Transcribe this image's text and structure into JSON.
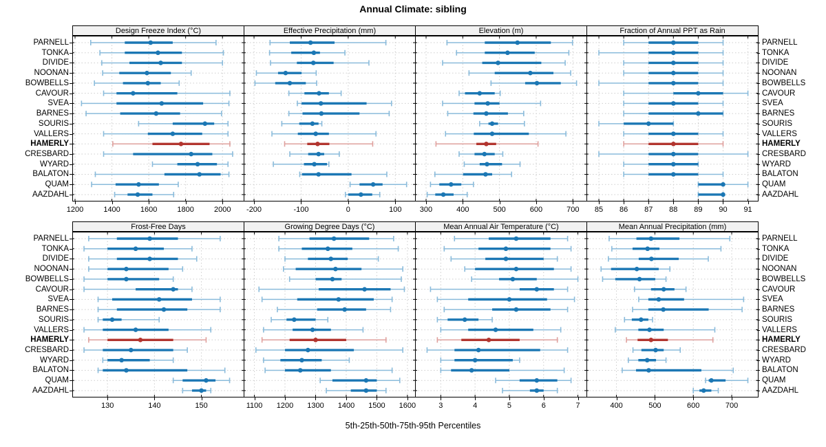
{
  "title": "Annual Climate: sibling",
  "footer": "5th-25th-50th-75th-95th Percentiles",
  "highlight_station": "HAMERLY",
  "colors": {
    "blue": "#1b77b4",
    "blue_light": "#8abbdb",
    "red": "#b2352f",
    "red_light": "#dfa09d",
    "grid": "#cdcdcd",
    "strip_bg": "#f2f2f2",
    "panel_border": "#000000"
  },
  "chart_data": {
    "type": "interval-dotplot",
    "percentiles": [
      5,
      25,
      50,
      75,
      95
    ],
    "legend_note": "5th-25th-50th-75th-95th Percentiles",
    "categories": [
      "PARNELL",
      "TONKA",
      "DIVIDE",
      "NOONAN",
      "BOWBELLS",
      "CAVOUR",
      "SVEA",
      "BARNES",
      "SOURIS",
      "VALLERS",
      "HAMERLY",
      "CRESBARD",
      "WYARD",
      "BALATON",
      "QUAM",
      "AAZDAHL"
    ],
    "highlight": "HAMERLY",
    "panels": [
      {
        "title": "Design Freeze Index (°C)",
        "row": 0,
        "col": 0,
        "xlim": [
          1185,
          2115
        ],
        "ticks": [
          1200,
          1400,
          1600,
          1800,
          2000
        ],
        "values": [
          [
            1285,
            1470,
            1610,
            1730,
            1965
          ],
          [
            1335,
            1470,
            1650,
            1780,
            2005
          ],
          [
            1345,
            1495,
            1665,
            1780,
            2000
          ],
          [
            1350,
            1440,
            1590,
            1720,
            1830
          ],
          [
            1305,
            1460,
            1595,
            1665,
            1765
          ],
          [
            1355,
            1425,
            1515,
            1755,
            2040
          ],
          [
            1235,
            1425,
            1670,
            1895,
            2035
          ],
          [
            1260,
            1445,
            1640,
            1770,
            1995
          ],
          [
            1545,
            1730,
            1905,
            1955,
            2030
          ],
          [
            1355,
            1595,
            1730,
            1890,
            2030
          ],
          [
            1405,
            1620,
            1775,
            1930,
            2040
          ],
          [
            1355,
            1515,
            1830,
            1945,
            2055
          ],
          [
            1620,
            1755,
            1865,
            1970,
            2030
          ],
          [
            1310,
            1685,
            1875,
            1990,
            2035
          ],
          [
            1290,
            1420,
            1545,
            1655,
            1760
          ],
          [
            1415,
            1485,
            1540,
            1620,
            1735
          ]
        ]
      },
      {
        "title": "Effective Precipitation (mm)",
        "row": 0,
        "col": 1,
        "xlim": [
          -222,
          142
        ],
        "ticks": [
          -200,
          -100,
          0,
          100
        ],
        "values": [
          [
            -166,
            -124,
            -80,
            -29,
            80
          ],
          [
            -167,
            -121,
            -73,
            -60,
            -7
          ],
          [
            -165,
            -109,
            -74,
            -31,
            44
          ],
          [
            -195,
            -149,
            -133,
            -99,
            -68
          ],
          [
            -198,
            -155,
            -124,
            -90,
            -67
          ],
          [
            -126,
            -93,
            -62,
            -41,
            -15
          ],
          [
            -108,
            -99,
            -58,
            39,
            92
          ],
          [
            -126,
            -97,
            -57,
            24,
            87
          ],
          [
            -141,
            -104,
            -76,
            -63,
            -56
          ],
          [
            -162,
            -107,
            -69,
            -41,
            59
          ],
          [
            -135,
            -87,
            -65,
            -40,
            52
          ],
          [
            -124,
            -85,
            -63,
            -51,
            -19
          ],
          [
            -159,
            -94,
            -72,
            -45,
            -41
          ],
          [
            -103,
            -98,
            -63,
            7,
            82
          ],
          [
            4,
            24,
            53,
            73,
            124
          ],
          [
            -6,
            0,
            27,
            51,
            67
          ]
        ]
      },
      {
        "title": "Elevation (m)",
        "row": 0,
        "col": 2,
        "xlim": [
          270,
          737
        ],
        "ticks": [
          300,
          400,
          500,
          600,
          700
        ],
        "values": [
          [
            357,
            460,
            549,
            640,
            699
          ],
          [
            383,
            460,
            522,
            596,
            689
          ],
          [
            345,
            453,
            496,
            614,
            679
          ],
          [
            417,
            487,
            584,
            647,
            694
          ],
          [
            477,
            570,
            602,
            667,
            710
          ],
          [
            390,
            406,
            446,
            487,
            502
          ],
          [
            345,
            432,
            468,
            500,
            612
          ],
          [
            359,
            429,
            464,
            523,
            566
          ],
          [
            446,
            470,
            480,
            496,
            568
          ],
          [
            353,
            430,
            480,
            580,
            681
          ],
          [
            327,
            437,
            464,
            491,
            605
          ],
          [
            390,
            432,
            459,
            487,
            509
          ],
          [
            404,
            446,
            466,
            507,
            556
          ],
          [
            324,
            401,
            462,
            480,
            533
          ],
          [
            312,
            336,
            368,
            396,
            429
          ],
          [
            303,
            325,
            347,
            375,
            412
          ]
        ]
      },
      {
        "title": "Fraction of Annual PPT as Rain",
        "row": 0,
        "col": 3,
        "xlim": [
          84.5,
          91.4
        ],
        "ticks": [
          85,
          86,
          87,
          88,
          89,
          90,
          91
        ],
        "values": [
          [
            86,
            87,
            88,
            89,
            90
          ],
          [
            85,
            87,
            88,
            89,
            90
          ],
          [
            86,
            87,
            88,
            89,
            90
          ],
          [
            86,
            87,
            88,
            89,
            90
          ],
          [
            85,
            87,
            88,
            89,
            90
          ],
          [
            86,
            88,
            89,
            90,
            91
          ],
          [
            86,
            87,
            88,
            89,
            90
          ],
          [
            86,
            87,
            89,
            90,
            90
          ],
          [
            85,
            86,
            87,
            88,
            88
          ],
          [
            86,
            87,
            88,
            89,
            90
          ],
          [
            86,
            87,
            88,
            89,
            90
          ],
          [
            85,
            87,
            88,
            89,
            91
          ],
          [
            86,
            87,
            88,
            89,
            89
          ],
          [
            86,
            87,
            88,
            89,
            90
          ],
          [
            89,
            89,
            90,
            90,
            91
          ],
          [
            89,
            89,
            90,
            90,
            90
          ]
        ]
      },
      {
        "title": "Frost-Free Days",
        "row": 1,
        "col": 0,
        "xlim": [
          122.5,
          159
        ],
        "ticks": [
          130,
          140,
          150
        ],
        "values": [
          [
            126,
            132,
            139,
            145,
            154
          ],
          [
            125,
            130,
            136,
            142,
            148
          ],
          [
            126,
            132,
            139,
            145,
            149
          ],
          [
            126,
            130,
            134,
            143,
            146
          ],
          [
            125,
            130,
            134,
            141,
            144
          ],
          [
            125,
            136,
            144,
            145,
            148
          ],
          [
            128,
            131,
            141,
            148,
            154
          ],
          [
            128,
            132,
            142,
            147,
            154
          ],
          [
            128,
            129,
            131,
            133,
            141
          ],
          [
            125,
            129,
            136,
            143,
            152
          ],
          [
            126,
            130,
            137,
            144,
            151
          ],
          [
            125,
            129,
            135,
            144,
            147
          ],
          [
            129,
            130,
            133,
            139,
            144
          ],
          [
            128,
            129,
            134,
            147,
            155
          ],
          [
            144,
            146,
            151,
            153,
            156
          ],
          [
            146,
            148,
            150,
            151,
            152
          ]
        ]
      },
      {
        "title": "Growing Degree Days (°C)",
        "row": 1,
        "col": 1,
        "xlim": [
          1065,
          1625
        ],
        "ticks": [
          1100,
          1200,
          1300,
          1400,
          1500,
          1600
        ],
        "values": [
          [
            1180,
            1280,
            1360,
            1475,
            1555
          ],
          [
            1180,
            1255,
            1340,
            1420,
            1570
          ],
          [
            1200,
            1275,
            1350,
            1405,
            1505
          ],
          [
            1195,
            1235,
            1365,
            1450,
            1585
          ],
          [
            1215,
            1300,
            1355,
            1385,
            1580
          ],
          [
            1115,
            1310,
            1460,
            1545,
            1590
          ],
          [
            1125,
            1240,
            1375,
            1490,
            1550
          ],
          [
            1175,
            1305,
            1395,
            1465,
            1545
          ],
          [
            1155,
            1205,
            1230,
            1300,
            1340
          ],
          [
            1130,
            1225,
            1290,
            1350,
            1455
          ],
          [
            1125,
            1215,
            1300,
            1400,
            1530
          ],
          [
            1105,
            1200,
            1275,
            1425,
            1585
          ],
          [
            1130,
            1185,
            1255,
            1320,
            1410
          ],
          [
            1135,
            1200,
            1250,
            1350,
            1550
          ],
          [
            1315,
            1355,
            1465,
            1500,
            1575
          ],
          [
            1335,
            1415,
            1465,
            1500,
            1530
          ]
        ]
      },
      {
        "title": "Mean Annual Air Temperature (°C)",
        "row": 1,
        "col": 2,
        "xlim": [
          2.25,
          7.25
        ],
        "ticks": [
          3,
          4,
          5,
          6,
          7
        ],
        "values": [
          [
            3.4,
            4.4,
            5.2,
            6.2,
            6.7
          ],
          [
            3.1,
            4.1,
            4.9,
            6.2,
            6.8
          ],
          [
            3.3,
            4.3,
            4.9,
            6.0,
            6.4
          ],
          [
            3.7,
            4.0,
            5.2,
            6.3,
            6.8
          ],
          [
            3.9,
            4.7,
            5.1,
            5.8,
            7.0
          ],
          [
            2.7,
            5.3,
            5.8,
            6.3,
            6.7
          ],
          [
            2.9,
            3.8,
            5.0,
            6.1,
            6.9
          ],
          [
            3.1,
            4.5,
            5.2,
            6.2,
            6.7
          ],
          [
            2.9,
            3.2,
            3.7,
            4.1,
            4.5
          ],
          [
            3.0,
            3.8,
            4.6,
            5.7,
            6.5
          ],
          [
            2.9,
            3.6,
            4.4,
            5.3,
            6.4
          ],
          [
            2.6,
            3.4,
            4.1,
            5.9,
            6.7
          ],
          [
            3.0,
            3.4,
            4.0,
            5.1,
            5.3
          ],
          [
            3.0,
            3.3,
            3.9,
            5.0,
            6.6
          ],
          [
            4.6,
            5.3,
            5.8,
            6.4,
            6.8
          ],
          [
            4.8,
            5.6,
            5.8,
            6.0,
            6.4
          ]
        ]
      },
      {
        "title": "Mean Annual Precipitation (mm)",
        "row": 1,
        "col": 3,
        "xlim": [
          322,
          768
        ],
        "ticks": [
          400,
          500,
          600,
          700
        ],
        "values": [
          [
            381,
            452,
            490,
            564,
            695
          ],
          [
            388,
            442,
            481,
            512,
            672
          ],
          [
            379,
            458,
            491,
            562,
            639
          ],
          [
            360,
            386,
            453,
            510,
            539
          ],
          [
            364,
            397,
            460,
            501,
            529
          ],
          [
            447,
            490,
            523,
            551,
            581
          ],
          [
            458,
            483,
            510,
            576,
            731
          ],
          [
            442,
            483,
            522,
            640,
            727
          ],
          [
            421,
            440,
            464,
            483,
            494
          ],
          [
            397,
            457,
            486,
            523,
            656
          ],
          [
            426,
            455,
            490,
            534,
            651
          ],
          [
            443,
            465,
            502,
            523,
            566
          ],
          [
            431,
            457,
            480,
            503,
            529
          ],
          [
            415,
            451,
            484,
            621,
            704
          ],
          [
            632,
            640,
            647,
            684,
            742
          ],
          [
            600,
            616,
            627,
            647,
            665
          ]
        ]
      }
    ]
  }
}
